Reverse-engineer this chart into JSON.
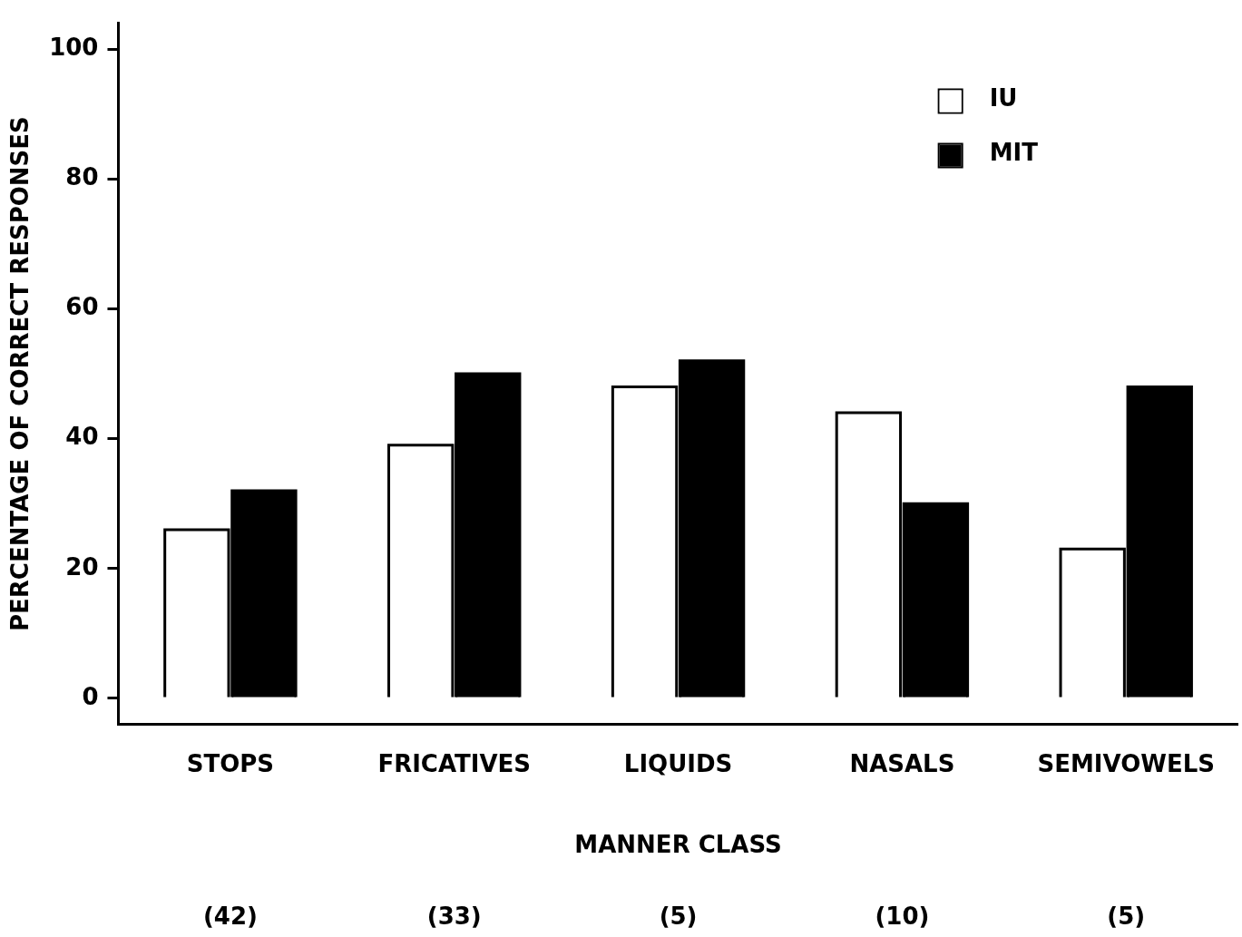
{
  "chart_data": {
    "type": "bar",
    "xlabel": "MANNER CLASS",
    "ylabel": "PERCENTAGE OF CORRECT RESPONSES",
    "categories": [
      "STOPS",
      "FRICATIVES",
      "LIQUIDS",
      "NASALS",
      "SEMIVOWELS"
    ],
    "series": [
      {
        "name": "IU",
        "color": "#ffffff",
        "values": [
          26,
          39,
          48,
          44,
          23
        ]
      },
      {
        "name": "MIT",
        "color": "#000000",
        "values": [
          32,
          50,
          52,
          30,
          48
        ]
      }
    ],
    "ylim": [
      -4,
      104
    ],
    "yticks": [
      0,
      20,
      40,
      60,
      80,
      100
    ],
    "grid": false,
    "legend": "top right",
    "annotations": [
      "(42)",
      "(33)",
      "(5)",
      "(10)",
      "(5)"
    ]
  }
}
